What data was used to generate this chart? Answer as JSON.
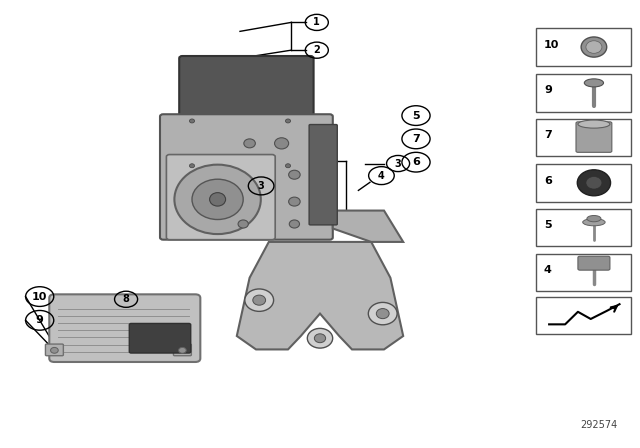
{
  "title": "",
  "bg_color": "#ffffff",
  "fig_width": 6.4,
  "fig_height": 4.48,
  "dpi": 100,
  "diagram_id": "292574"
}
